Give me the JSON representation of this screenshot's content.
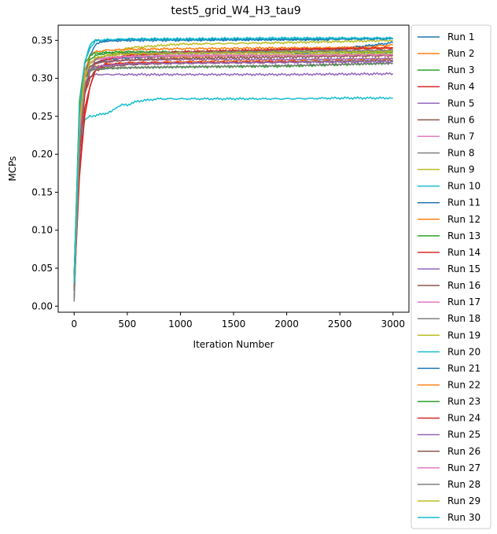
{
  "chart_data": {
    "type": "line",
    "title": "test5_grid_W4_H3_tau9",
    "xlabel": "Iteration Number",
    "ylabel": "MCPs",
    "xlim": [
      -150,
      3150
    ],
    "ylim": [
      -0.008,
      0.37
    ],
    "xticks": [
      0,
      500,
      1000,
      1500,
      2000,
      2500,
      3000
    ],
    "xtick_labels": [
      "0",
      "500",
      "1000",
      "1500",
      "2000",
      "2500",
      "3000"
    ],
    "yticks": [
      0.0,
      0.05,
      0.1,
      0.15,
      0.2,
      0.25,
      0.3,
      0.35
    ],
    "ytick_labels": [
      "0.00",
      "0.05",
      "0.10",
      "0.15",
      "0.20",
      "0.25",
      "0.30",
      "0.35"
    ],
    "grid": false,
    "legend_position": "outside-right",
    "series": [
      {
        "name": "Run 1",
        "color": "#1f77b4",
        "x": [
          0,
          50,
          100,
          150,
          200,
          300,
          500,
          1000,
          2000,
          2400
        ],
        "y": [
          0.02,
          0.24,
          0.3,
          0.33,
          0.345,
          0.349,
          0.35,
          0.35,
          0.351,
          0.351
        ]
      },
      {
        "name": "Run 2",
        "color": "#ff7f0e",
        "x": [
          0,
          50,
          100,
          150,
          200,
          300,
          500,
          1000,
          2000,
          2500,
          3000
        ],
        "y": [
          0.03,
          0.22,
          0.28,
          0.31,
          0.32,
          0.325,
          0.327,
          0.328,
          0.33,
          0.34,
          0.344
        ]
      },
      {
        "name": "Run 3",
        "color": "#2ca02c",
        "x": [
          0,
          50,
          100,
          150,
          200,
          300,
          500,
          1000,
          2000,
          3000
        ],
        "y": [
          0.04,
          0.26,
          0.31,
          0.325,
          0.33,
          0.333,
          0.334,
          0.334,
          0.334,
          0.334
        ]
      },
      {
        "name": "Run 4",
        "color": "#d62728",
        "x": [
          0,
          50,
          100,
          150,
          200,
          300,
          500,
          1000,
          1500,
          2000,
          3000
        ],
        "y": [
          0.02,
          0.18,
          0.26,
          0.29,
          0.31,
          0.32,
          0.33,
          0.334,
          0.336,
          0.338,
          0.34
        ]
      },
      {
        "name": "Run 5",
        "color": "#9467bd",
        "x": [
          0,
          50,
          100,
          150,
          200,
          300,
          500,
          1000,
          2000,
          3000
        ],
        "y": [
          0.02,
          0.23,
          0.29,
          0.303,
          0.305,
          0.305,
          0.305,
          0.305,
          0.305,
          0.306
        ]
      },
      {
        "name": "Run 6",
        "color": "#8c564b",
        "x": [
          0,
          50,
          100,
          150,
          200,
          300,
          500,
          1000,
          2000,
          3000
        ],
        "y": [
          0.02,
          0.2,
          0.28,
          0.3,
          0.31,
          0.315,
          0.318,
          0.32,
          0.322,
          0.324
        ]
      },
      {
        "name": "Run 7",
        "color": "#e377c2",
        "x": [
          0,
          50,
          100,
          150,
          200,
          300,
          500,
          1000,
          1500,
          2000,
          3000
        ],
        "y": [
          0.03,
          0.22,
          0.29,
          0.31,
          0.32,
          0.325,
          0.327,
          0.33,
          0.33,
          0.33,
          0.331
        ]
      },
      {
        "name": "Run 8",
        "color": "#7f7f7f",
        "x": [
          0,
          50,
          100,
          150,
          200,
          300,
          500,
          1000,
          2000,
          3000
        ],
        "y": [
          0.006,
          0.2,
          0.28,
          0.31,
          0.32,
          0.325,
          0.33,
          0.333,
          0.334,
          0.336
        ]
      },
      {
        "name": "Run 9",
        "color": "#bcbd22",
        "x": [
          0,
          50,
          100,
          150,
          200,
          300,
          500,
          1000,
          1500,
          2000,
          3000
        ],
        "y": [
          0.02,
          0.24,
          0.3,
          0.32,
          0.325,
          0.327,
          0.34,
          0.345,
          0.346,
          0.347,
          0.35
        ]
      },
      {
        "name": "Run 10",
        "color": "#17becf",
        "x": [
          0,
          30,
          60,
          100,
          150,
          200,
          300,
          350,
          400,
          450,
          500,
          600,
          800,
          1000,
          1500,
          2000,
          2500,
          3000
        ],
        "y": [
          0.03,
          0.16,
          0.22,
          0.245,
          0.25,
          0.251,
          0.254,
          0.256,
          0.262,
          0.265,
          0.265,
          0.27,
          0.273,
          0.273,
          0.273,
          0.273,
          0.274,
          0.274
        ]
      },
      {
        "name": "Run 11",
        "color": "#1f77b4",
        "x": [
          0,
          50,
          100,
          150,
          200,
          300,
          500,
          1000,
          2000,
          3000
        ],
        "y": [
          0.03,
          0.22,
          0.29,
          0.31,
          0.32,
          0.325,
          0.327,
          0.33,
          0.33,
          0.347
        ]
      },
      {
        "name": "Run 12",
        "color": "#ff7f0e",
        "x": [
          0,
          50,
          100,
          150,
          200,
          300,
          500,
          1000,
          2000,
          3000
        ],
        "y": [
          0.02,
          0.21,
          0.29,
          0.31,
          0.315,
          0.318,
          0.32,
          0.322,
          0.324,
          0.326
        ]
      },
      {
        "name": "Run 13",
        "color": "#2ca02c",
        "x": [
          0,
          50,
          100,
          150,
          200,
          300,
          500,
          1000,
          2000,
          3000
        ],
        "y": [
          0.04,
          0.24,
          0.3,
          0.31,
          0.312,
          0.313,
          0.314,
          0.315,
          0.316,
          0.32
        ]
      },
      {
        "name": "Run 14",
        "color": "#d62728",
        "x": [
          0,
          50,
          100,
          150,
          200,
          300,
          500,
          1000,
          1500,
          2000,
          2150
        ],
        "y": [
          0.02,
          0.17,
          0.25,
          0.29,
          0.31,
          0.318,
          0.32,
          0.321,
          0.321,
          0.322,
          0.322
        ]
      },
      {
        "name": "Run 15",
        "color": "#9467bd",
        "x": [
          0,
          50,
          100,
          150,
          200,
          300,
          500,
          1000,
          2000,
          3000
        ],
        "y": [
          0.03,
          0.24,
          0.3,
          0.315,
          0.32,
          0.322,
          0.324,
          0.325,
          0.325,
          0.326
        ]
      },
      {
        "name": "Run 16",
        "color": "#8c564b",
        "x": [
          0,
          50,
          100,
          150,
          200,
          300,
          500,
          1000,
          2000,
          3000
        ],
        "y": [
          0.02,
          0.21,
          0.29,
          0.31,
          0.315,
          0.317,
          0.319,
          0.32,
          0.321,
          0.322
        ]
      },
      {
        "name": "Run 17",
        "color": "#e377c2",
        "x": [
          0,
          50,
          100,
          150,
          200,
          300,
          500,
          1000,
          2000,
          3000
        ],
        "y": [
          0.03,
          0.22,
          0.3,
          0.32,
          0.325,
          0.327,
          0.328,
          0.33,
          0.331,
          0.332
        ]
      },
      {
        "name": "Run 18",
        "color": "#7f7f7f",
        "x": [
          0,
          50,
          100,
          150,
          200,
          300,
          500,
          1000,
          2000,
          3000
        ],
        "y": [
          0.01,
          0.2,
          0.29,
          0.31,
          0.312,
          0.313,
          0.314,
          0.315,
          0.317,
          0.32
        ]
      },
      {
        "name": "Run 19",
        "color": "#bcbd22",
        "x": [
          0,
          50,
          100,
          150,
          200,
          300,
          500,
          1000,
          2000,
          3000
        ],
        "y": [
          0.03,
          0.25,
          0.3,
          0.32,
          0.325,
          0.327,
          0.329,
          0.33,
          0.331,
          0.332
        ]
      },
      {
        "name": "Run 20",
        "color": "#17becf",
        "x": [
          0,
          50,
          100,
          150,
          200,
          300,
          500,
          1000,
          2000,
          3000
        ],
        "y": [
          0.03,
          0.26,
          0.32,
          0.34,
          0.349,
          0.35,
          0.351,
          0.351,
          0.352,
          0.352
        ]
      },
      {
        "name": "Run 21",
        "color": "#1f77b4",
        "x": [
          0,
          50,
          100,
          150,
          200,
          300,
          500,
          1000,
          2000,
          3000
        ],
        "y": [
          0.03,
          0.25,
          0.32,
          0.345,
          0.35,
          0.35,
          0.351,
          0.351,
          0.351,
          0.352
        ]
      },
      {
        "name": "Run 22",
        "color": "#ff7f0e",
        "x": [
          0,
          50,
          100,
          150,
          200,
          300,
          500,
          1000,
          2000,
          3000
        ],
        "y": [
          0.03,
          0.24,
          0.31,
          0.33,
          0.335,
          0.337,
          0.338,
          0.339,
          0.34,
          0.34
        ]
      },
      {
        "name": "Run 23",
        "color": "#2ca02c",
        "x": [
          0,
          50,
          100,
          150,
          200,
          300,
          500,
          1000,
          2000,
          3000
        ],
        "y": [
          0.04,
          0.27,
          0.32,
          0.33,
          0.333,
          0.334,
          0.335,
          0.335,
          0.335,
          0.335
        ]
      },
      {
        "name": "Run 24",
        "color": "#d62728",
        "x": [
          0,
          50,
          100,
          150,
          200,
          300,
          500,
          1000,
          2000,
          3000
        ],
        "y": [
          0.02,
          0.2,
          0.28,
          0.31,
          0.32,
          0.325,
          0.33,
          0.335,
          0.338,
          0.34
        ]
      },
      {
        "name": "Run 25",
        "color": "#9467bd",
        "x": [
          0,
          50,
          100,
          150,
          200,
          300,
          500,
          1000,
          2000,
          3000
        ],
        "y": [
          0.03,
          0.22,
          0.29,
          0.31,
          0.315,
          0.317,
          0.319,
          0.32,
          0.321,
          0.322
        ]
      },
      {
        "name": "Run 26",
        "color": "#8c564b",
        "x": [
          0,
          50,
          100,
          150,
          200,
          300,
          500,
          1000,
          2000,
          3000
        ],
        "y": [
          0.02,
          0.21,
          0.3,
          0.315,
          0.32,
          0.322,
          0.324,
          0.326,
          0.328,
          0.33
        ]
      },
      {
        "name": "Run 27",
        "color": "#e377c2",
        "x": [
          0,
          50,
          100,
          150,
          200,
          300,
          500,
          1000,
          2000,
          3000
        ],
        "y": [
          0.03,
          0.23,
          0.3,
          0.32,
          0.325,
          0.327,
          0.329,
          0.33,
          0.33,
          0.331
        ]
      },
      {
        "name": "Run 28",
        "color": "#7f7f7f",
        "x": [
          0,
          50,
          100,
          150,
          200,
          300,
          500,
          1000,
          2000,
          3000
        ],
        "y": [
          0.01,
          0.21,
          0.29,
          0.31,
          0.325,
          0.33,
          0.333,
          0.334,
          0.336,
          0.337
        ]
      },
      {
        "name": "Run 29",
        "color": "#bcbd22",
        "x": [
          0,
          50,
          100,
          150,
          200,
          300,
          500,
          1000,
          2000,
          3000
        ],
        "y": [
          0.03,
          0.24,
          0.3,
          0.32,
          0.327,
          0.33,
          0.332,
          0.333,
          0.334,
          0.335
        ]
      },
      {
        "name": "Run 30",
        "color": "#17becf",
        "x": [
          0,
          50,
          100,
          150,
          200,
          300,
          500,
          1000,
          2000,
          3000
        ],
        "y": [
          0.03,
          0.26,
          0.32,
          0.345,
          0.35,
          0.351,
          0.352,
          0.352,
          0.353,
          0.353
        ]
      }
    ]
  }
}
